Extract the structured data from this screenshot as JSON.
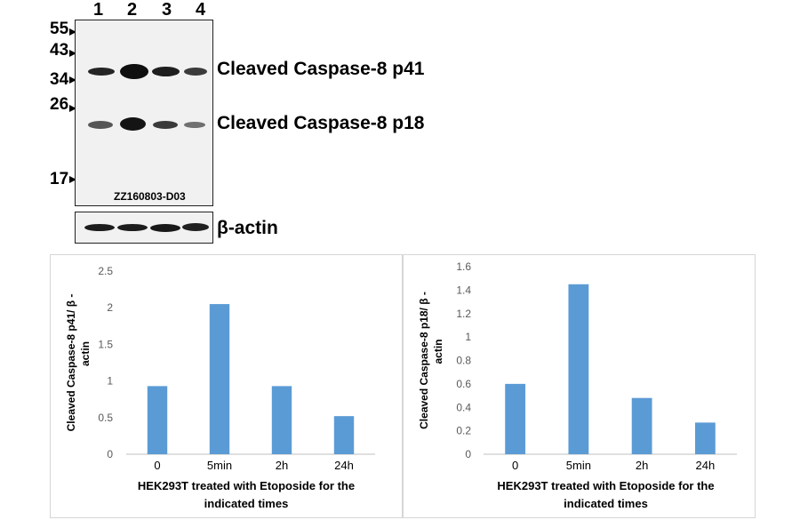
{
  "blot": {
    "lanes": [
      "1",
      "2",
      "3",
      "4"
    ],
    "markers": [
      "55",
      "43",
      "34",
      "26",
      "17"
    ],
    "band_labels": {
      "p41": "Cleaved Caspase-8 p41",
      "p18": "Cleaved Caspase-8 p18",
      "actin": "β-actin"
    },
    "lot": "ZZ160803-D03"
  },
  "chart_data": [
    {
      "type": "bar",
      "categories": [
        "0",
        "5min",
        "2h",
        "24h"
      ],
      "values": [
        0.93,
        2.05,
        0.93,
        0.52
      ],
      "title": "",
      "xlabel": "HEK293T treated with Etoposide for the indicated times",
      "ylabel": "Cleaved Caspase-8 p41/ β - actin",
      "ylim": [
        0,
        2.5
      ],
      "yticks": [
        "0",
        "0.5",
        "1",
        "1.5",
        "2",
        "2.5"
      ],
      "grid": false,
      "color": "#5b9bd5"
    },
    {
      "type": "bar",
      "categories": [
        "0",
        "5min",
        "2h",
        "24h"
      ],
      "values": [
        0.6,
        1.45,
        0.48,
        0.27
      ],
      "title": "",
      "xlabel": "HEK293T treated with Etoposide for the indicated times",
      "ylabel": "Cleaved Caspase-8 p18/ β - actin",
      "ylim": [
        0,
        1.6
      ],
      "yticks": [
        "0",
        "0.2",
        "0.4",
        "0.6",
        "0.8",
        "1",
        "1.2",
        "1.4",
        "1.6"
      ],
      "grid": false,
      "color": "#5b9bd5"
    }
  ]
}
